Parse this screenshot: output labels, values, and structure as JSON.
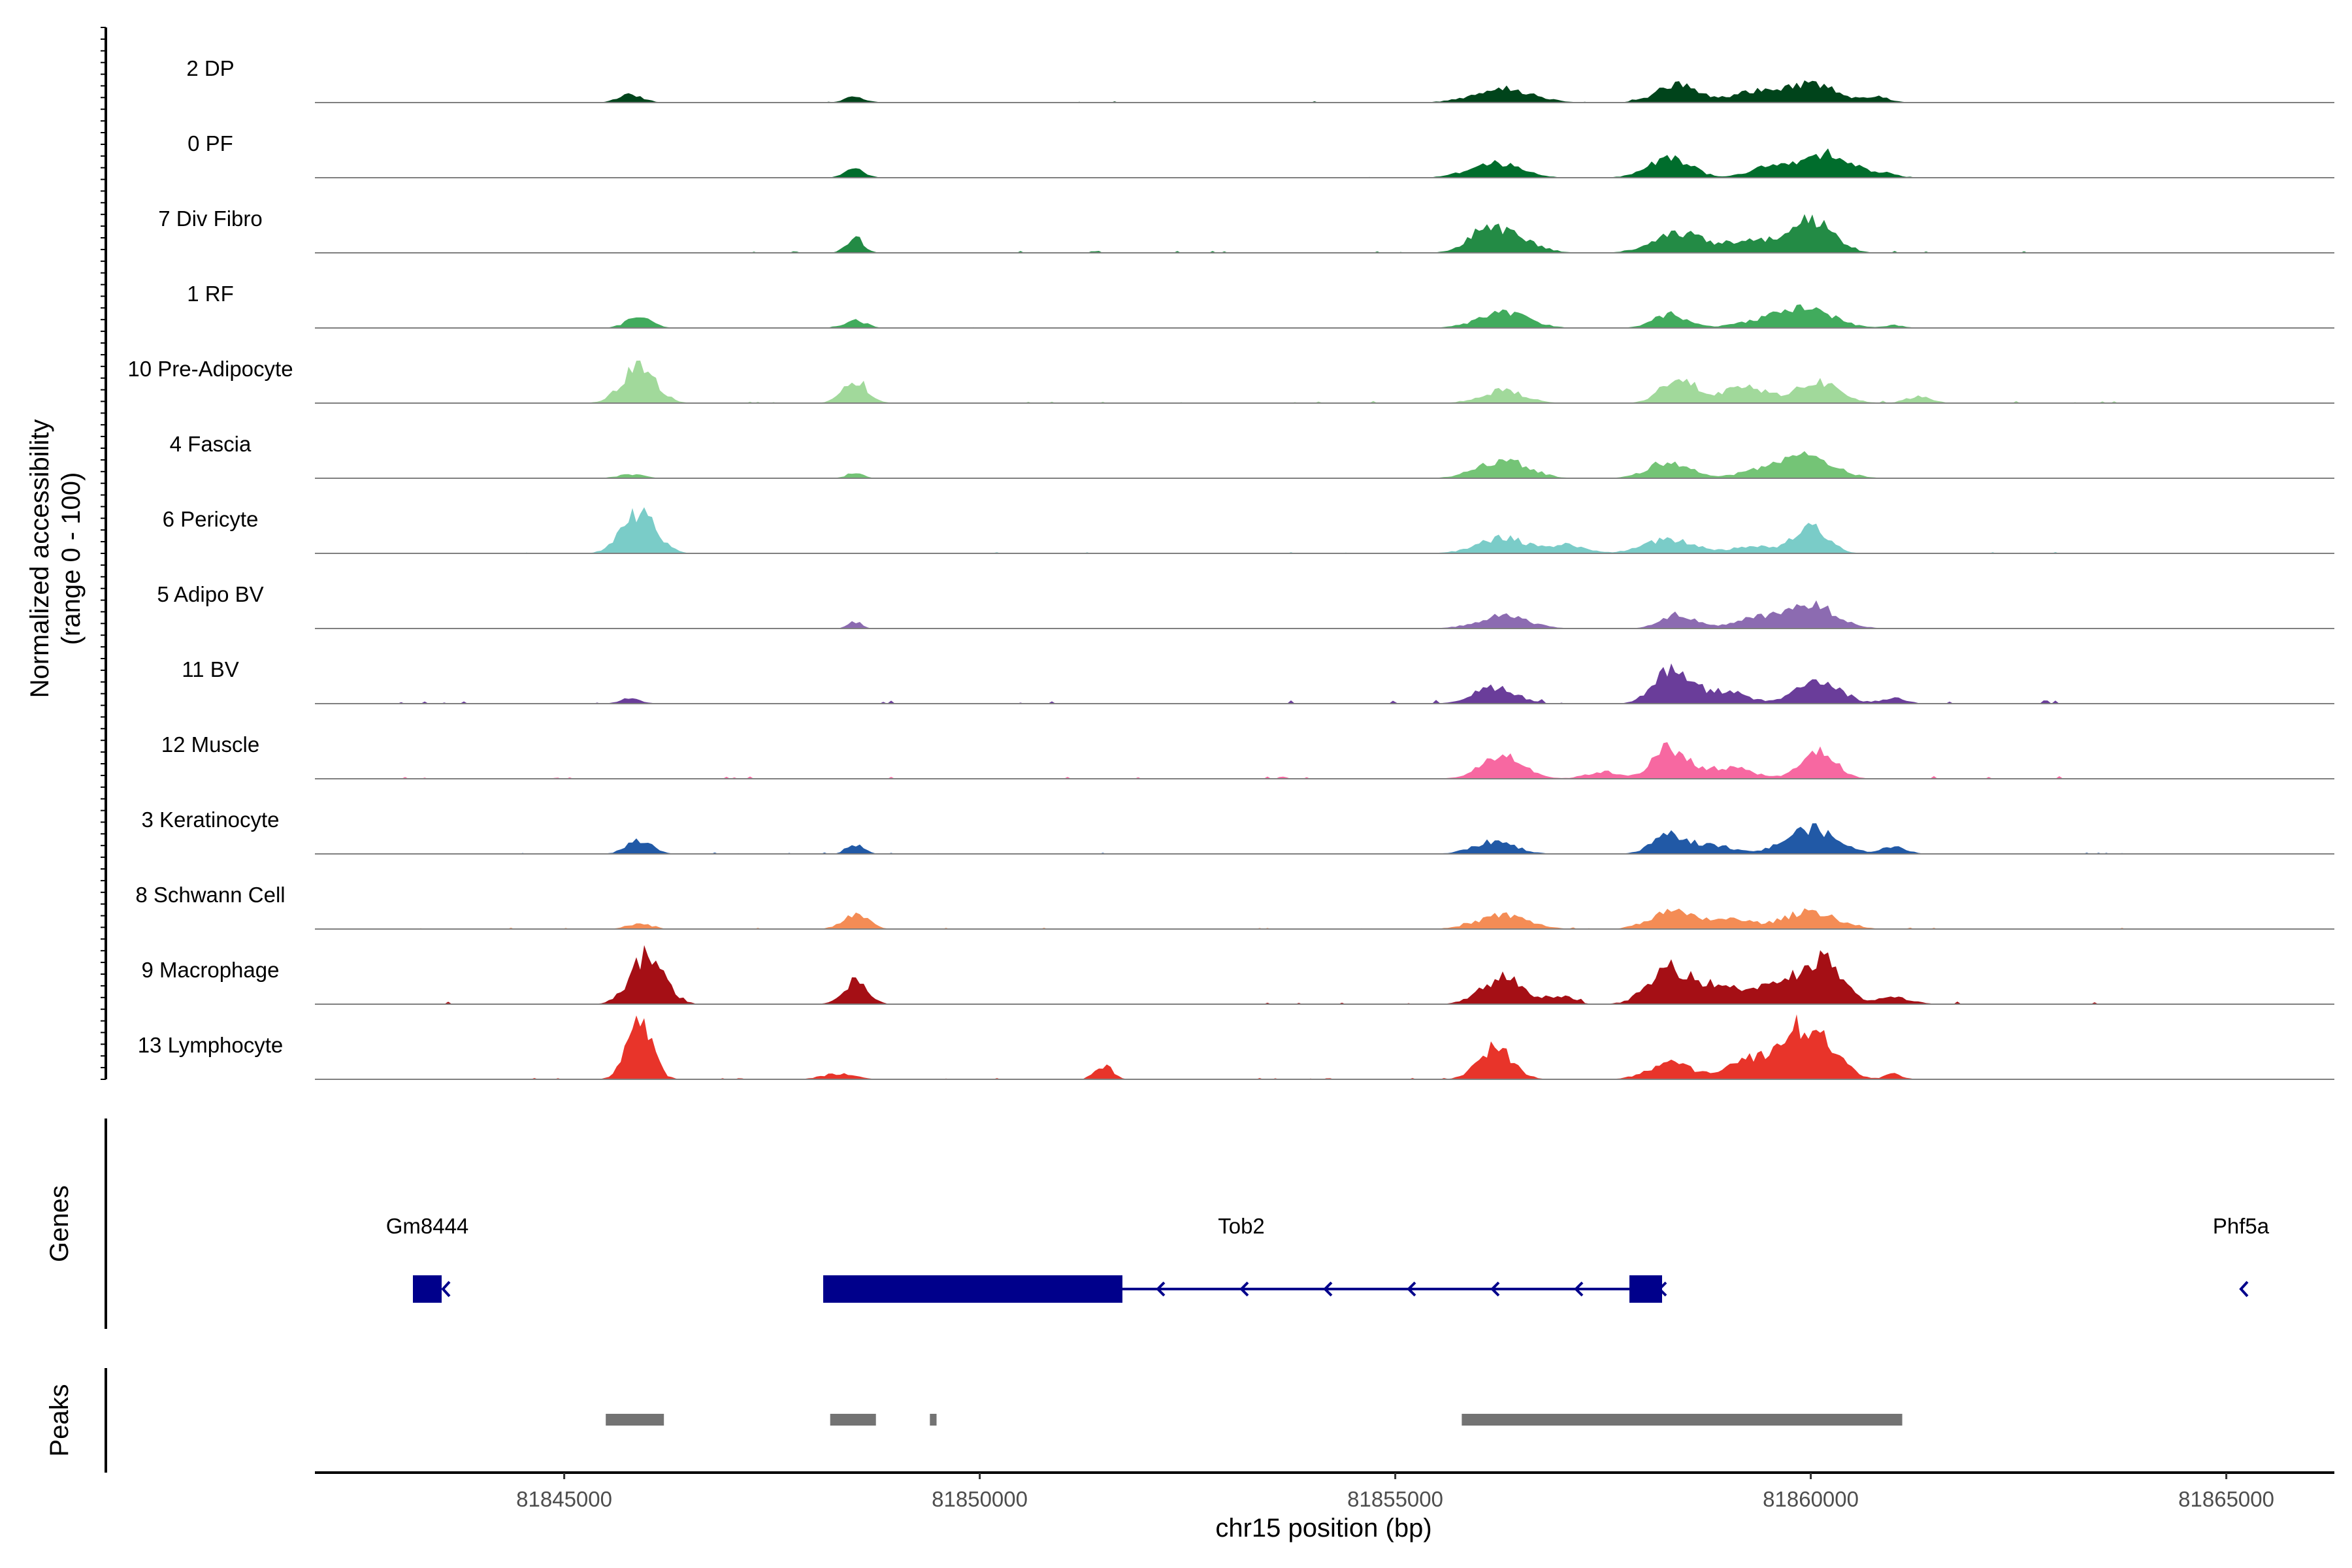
{
  "chart_data": {
    "type": "area",
    "title": "",
    "ylabel_line1": "Normalized accessibility",
    "ylabel_line2": "(range 0 - 100)",
    "xlabel": "chr15 position (bp)",
    "xlim": [
      81842000,
      81866300
    ],
    "ylim": [
      0,
      100
    ],
    "xticks": [
      81845000,
      81850000,
      81855000,
      81860000,
      81865000
    ],
    "xtick_labels": [
      "81845000",
      "81850000",
      "81855000",
      "81860000",
      "81865000"
    ],
    "series": [
      {
        "name": "2 DP",
        "color": "#00441b",
        "peaks": [
          [
            81845800,
            150,
            11
          ],
          [
            81848500,
            130,
            8
          ],
          [
            81856300,
            350,
            20
          ],
          [
            81858400,
            250,
            26
          ],
          [
            81859300,
            250,
            15
          ],
          [
            81860000,
            300,
            28
          ],
          [
            81860800,
            150,
            8
          ]
        ],
        "noise": 2
      },
      {
        "name": "0 PF",
        "color": "#006d2c",
        "peaks": [
          [
            81848500,
            120,
            12
          ],
          [
            81856200,
            300,
            22
          ],
          [
            81858300,
            250,
            30
          ],
          [
            81859500,
            250,
            14
          ],
          [
            81860200,
            300,
            36
          ],
          [
            81860900,
            150,
            5
          ]
        ],
        "noise": 1
      },
      {
        "name": "7 Div Fibro",
        "color": "#238b45",
        "peaks": [
          [
            81848500,
            100,
            22
          ],
          [
            81856300,
            300,
            30
          ],
          [
            81858400,
            300,
            28
          ],
          [
            81859300,
            300,
            18
          ],
          [
            81860000,
            250,
            48
          ],
          [
            81856000,
            150,
            15
          ]
        ],
        "noise": 3
      },
      {
        "name": "1 RF",
        "color": "#41ab5d",
        "peaks": [
          [
            81845900,
            150,
            16
          ],
          [
            81848500,
            130,
            11
          ],
          [
            81856300,
            300,
            22
          ],
          [
            81858300,
            200,
            20
          ],
          [
            81859500,
            350,
            12
          ],
          [
            81860000,
            300,
            24
          ],
          [
            81861000,
            120,
            4
          ]
        ],
        "noise": 1
      },
      {
        "name": "10 Pre-Adipocyte",
        "color": "#a1d99b",
        "peaks": [
          [
            81845900,
            200,
            52
          ],
          [
            81848500,
            150,
            30
          ],
          [
            81856300,
            250,
            18
          ],
          [
            81858400,
            200,
            36
          ],
          [
            81859200,
            300,
            22
          ],
          [
            81860100,
            250,
            30
          ],
          [
            81861300,
            150,
            10
          ]
        ],
        "noise": 3
      },
      {
        "name": "4 Fascia",
        "color": "#74c476",
        "peaks": [
          [
            81845800,
            150,
            6
          ],
          [
            81848500,
            100,
            8
          ],
          [
            81856300,
            300,
            26
          ],
          [
            81858300,
            250,
            24
          ],
          [
            81859500,
            300,
            14
          ],
          [
            81860000,
            300,
            28
          ]
        ],
        "noise": 1
      },
      {
        "name": "6 Pericyte",
        "color": "#7accc8",
        "peaks": [
          [
            81845900,
            200,
            58
          ],
          [
            81856300,
            300,
            22
          ],
          [
            81857100,
            200,
            12
          ],
          [
            81858300,
            300,
            20
          ],
          [
            81860000,
            200,
            40
          ],
          [
            81859300,
            250,
            10
          ]
        ],
        "noise": 2
      },
      {
        "name": "5 Adipo BV",
        "color": "#8c6bb1",
        "peaks": [
          [
            81848500,
            80,
            10
          ],
          [
            81856300,
            300,
            18
          ],
          [
            81858400,
            200,
            20
          ],
          [
            81859300,
            250,
            14
          ],
          [
            81860000,
            300,
            34
          ]
        ],
        "noise": 1
      },
      {
        "name": "11 BV",
        "color": "#6a3d9a",
        "peaks": [
          [
            81845800,
            120,
            8
          ],
          [
            81856200,
            250,
            24
          ],
          [
            81858300,
            200,
            46
          ],
          [
            81858900,
            300,
            18
          ],
          [
            81860100,
            250,
            34
          ],
          [
            81861000,
            150,
            8
          ]
        ],
        "noise": 5
      },
      {
        "name": "12 Muscle",
        "color": "#f768a1",
        "peaks": [
          [
            81856300,
            250,
            34
          ],
          [
            81858300,
            200,
            44
          ],
          [
            81859000,
            300,
            16
          ],
          [
            81860100,
            200,
            40
          ],
          [
            81857500,
            200,
            10
          ]
        ],
        "noise": 4
      },
      {
        "name": "3 Keratinocyte",
        "color": "#2159a6",
        "peaks": [
          [
            81845900,
            150,
            20
          ],
          [
            81848500,
            100,
            14
          ],
          [
            81856200,
            250,
            18
          ],
          [
            81858300,
            200,
            26
          ],
          [
            81858800,
            250,
            12
          ],
          [
            81860000,
            300,
            36
          ],
          [
            81861000,
            150,
            10
          ]
        ],
        "noise": 2
      },
      {
        "name": "8 Schwann Cell",
        "color": "#f48c55",
        "peaks": [
          [
            81845900,
            150,
            8
          ],
          [
            81848500,
            150,
            22
          ],
          [
            81856300,
            300,
            20
          ],
          [
            81858300,
            250,
            24
          ],
          [
            81859000,
            300,
            14
          ],
          [
            81860000,
            300,
            26
          ]
        ],
        "noise": 2
      },
      {
        "name": "9 Macrophage",
        "color": "#a50f15",
        "peaks": [
          [
            81846000,
            200,
            70
          ],
          [
            81848500,
            150,
            32
          ],
          [
            81856300,
            250,
            38
          ],
          [
            81857000,
            150,
            12
          ],
          [
            81858300,
            250,
            48
          ],
          [
            81858900,
            300,
            24
          ],
          [
            81859700,
            300,
            34
          ],
          [
            81860200,
            200,
            54
          ],
          [
            81861000,
            200,
            10
          ]
        ],
        "noise": 4
      },
      {
        "name": "13 Lymphocyte",
        "color": "#e8342a",
        "peaks": [
          [
            81845900,
            150,
            85
          ],
          [
            81851500,
            100,
            20
          ],
          [
            81856200,
            200,
            46
          ],
          [
            81858300,
            250,
            24
          ],
          [
            81859300,
            300,
            30
          ],
          [
            81860100,
            250,
            52
          ],
          [
            81859800,
            200,
            40
          ],
          [
            81848300,
            200,
            8
          ],
          [
            81861000,
            100,
            8
          ]
        ],
        "noise": 2
      }
    ]
  },
  "genes": {
    "axis_label": "Genes",
    "color": "#00008b",
    "names": [
      "Gm8444",
      "Tob2",
      "Phf5a"
    ]
  },
  "peaks_track": {
    "axis_label": "Peaks",
    "color": "#737373",
    "regions": [
      [
        81845500,
        81846200
      ],
      [
        81848200,
        81848750
      ],
      [
        81849400,
        81849480
      ],
      [
        81855800,
        81861100
      ]
    ]
  }
}
